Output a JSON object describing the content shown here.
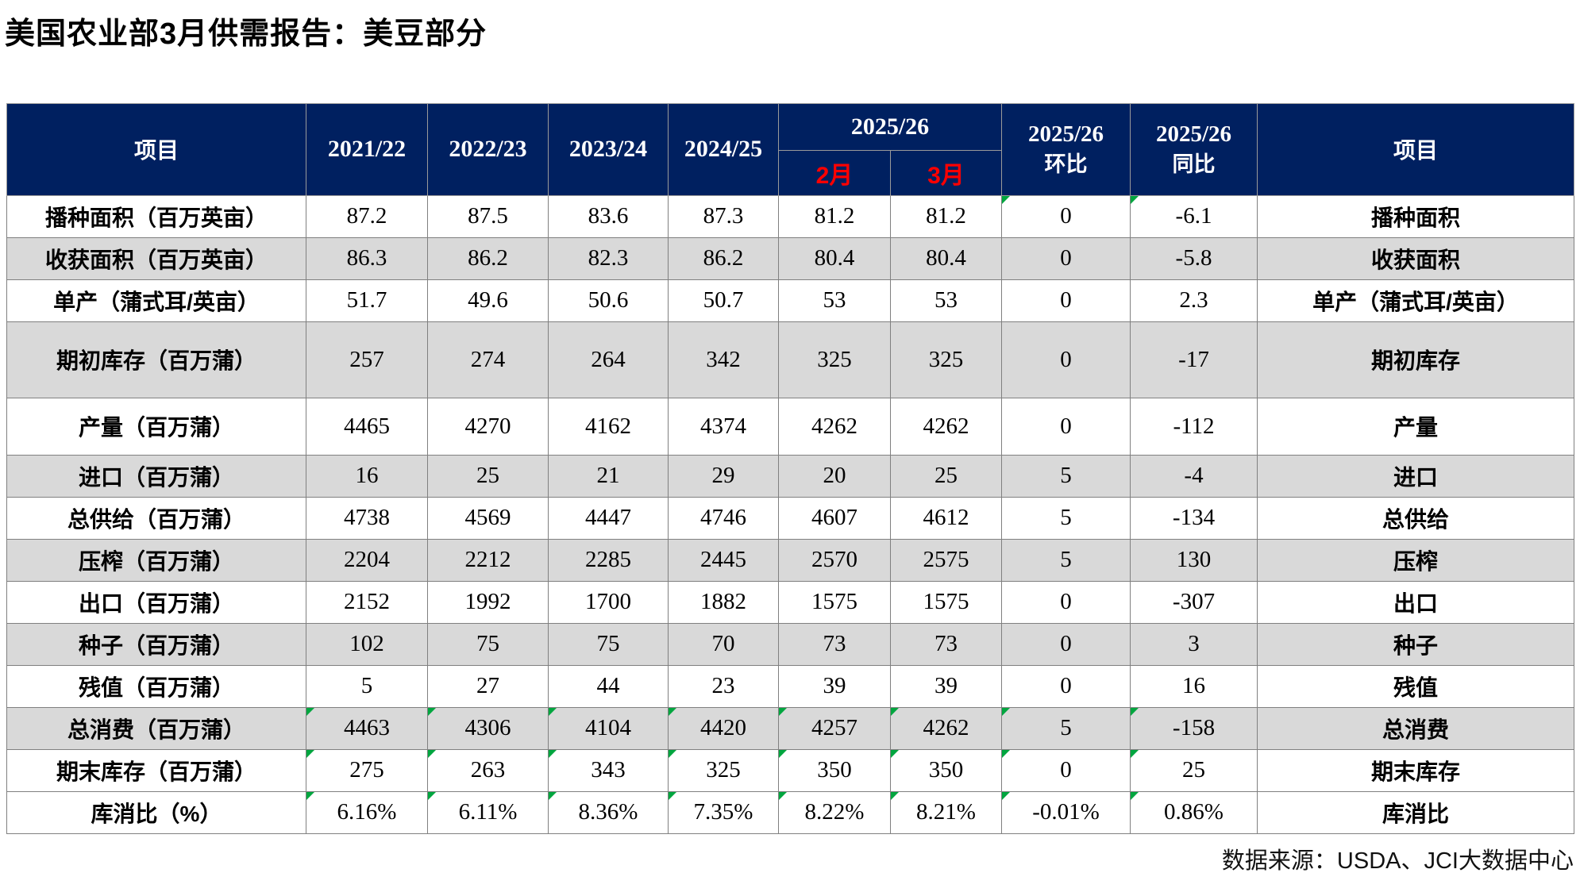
{
  "title": "美国农业部3月供需报告：美豆部分",
  "colors": {
    "header_bg": "#002060",
    "alt_row": "#D9D9D9",
    "month_red": "#FF0000",
    "mark_green": "#00A63F",
    "grid": "#808080"
  },
  "table": {
    "header": {
      "item_left": "项目",
      "years": [
        "2021/22",
        "2022/23",
        "2023/24",
        "2024/25"
      ],
      "group": {
        "label": "2025/26",
        "months": [
          "2月",
          "3月"
        ]
      },
      "mom_line1": "2025/26",
      "mom_line2": "环比",
      "yoy_line1": "2025/26",
      "yoy_line2": "同比",
      "item_right": "项目"
    },
    "rows": [
      {
        "label": "播种面积（百万英亩）",
        "values": [
          "87.2",
          "87.5",
          "83.6",
          "87.3",
          "81.2",
          "81.2",
          "0",
          "-6.1"
        ],
        "right_label": "播种面积",
        "shade": false,
        "marks": [
          6,
          7
        ]
      },
      {
        "label": "收获面积（百万英亩）",
        "values": [
          "86.3",
          "86.2",
          "82.3",
          "86.2",
          "80.4",
          "80.4",
          "0",
          "-5.8"
        ],
        "right_label": "收获面积",
        "shade": true,
        "marks": []
      },
      {
        "label": "单产（蒲式耳/英亩）",
        "values": [
          "51.7",
          "49.6",
          "50.6",
          "50.7",
          "53",
          "53",
          "0",
          "2.3"
        ],
        "right_label": "单产（蒲式耳/英亩）",
        "shade": false,
        "marks": []
      },
      {
        "label": "期初库存（百万蒲）",
        "values": [
          "257",
          "274",
          "264",
          "342",
          "325",
          "325",
          "0",
          "-17"
        ],
        "right_label": "期初库存",
        "shade": true,
        "marks": []
      },
      {
        "label": "产量（百万蒲）",
        "values": [
          "4465",
          "4270",
          "4162",
          "4374",
          "4262",
          "4262",
          "0",
          "-112"
        ],
        "right_label": "产量",
        "shade": false,
        "marks": []
      },
      {
        "label": "进口（百万蒲）",
        "values": [
          "16",
          "25",
          "21",
          "29",
          "20",
          "25",
          "5",
          "-4"
        ],
        "right_label": "进口",
        "shade": true,
        "marks": []
      },
      {
        "label": "总供给（百万蒲）",
        "values": [
          "4738",
          "4569",
          "4447",
          "4746",
          "4607",
          "4612",
          "5",
          "-134"
        ],
        "right_label": "总供给",
        "shade": false,
        "marks": []
      },
      {
        "label": "压榨（百万蒲）",
        "values": [
          "2204",
          "2212",
          "2285",
          "2445",
          "2570",
          "2575",
          "5",
          "130"
        ],
        "right_label": "压榨",
        "shade": true,
        "marks": []
      },
      {
        "label": "出口（百万蒲）",
        "values": [
          "2152",
          "1992",
          "1700",
          "1882",
          "1575",
          "1575",
          "0",
          "-307"
        ],
        "right_label": "出口",
        "shade": false,
        "marks": []
      },
      {
        "label": "种子（百万蒲）",
        "values": [
          "102",
          "75",
          "75",
          "70",
          "73",
          "73",
          "0",
          "3"
        ],
        "right_label": "种子",
        "shade": true,
        "marks": []
      },
      {
        "label": "残值（百万蒲）",
        "values": [
          "5",
          "27",
          "44",
          "23",
          "39",
          "39",
          "0",
          "16"
        ],
        "right_label": "残值",
        "shade": false,
        "marks": []
      },
      {
        "label": "总消费（百万蒲）",
        "values": [
          "4463",
          "4306",
          "4104",
          "4420",
          "4257",
          "4262",
          "5",
          "-158"
        ],
        "right_label": "总消费",
        "shade": true,
        "marks": [
          0,
          1,
          2,
          3,
          4,
          5,
          6,
          7
        ]
      },
      {
        "label": "期末库存（百万蒲）",
        "values": [
          "275",
          "263",
          "343",
          "325",
          "350",
          "350",
          "0",
          "25"
        ],
        "right_label": "期末库存",
        "shade": false,
        "marks": [
          0,
          1,
          2,
          3,
          4,
          5,
          6,
          7
        ]
      },
      {
        "label": "库消比（%）",
        "values": [
          "6.16%",
          "6.11%",
          "8.36%",
          "7.35%",
          "8.22%",
          "8.21%",
          "-0.01%",
          "0.86%"
        ],
        "right_label": "库消比",
        "shade": false,
        "marks": [
          0,
          1,
          2,
          3,
          4,
          5,
          6,
          7
        ]
      }
    ]
  },
  "footer": {
    "source": "数据来源：USDA、JCI大数据中心"
  }
}
